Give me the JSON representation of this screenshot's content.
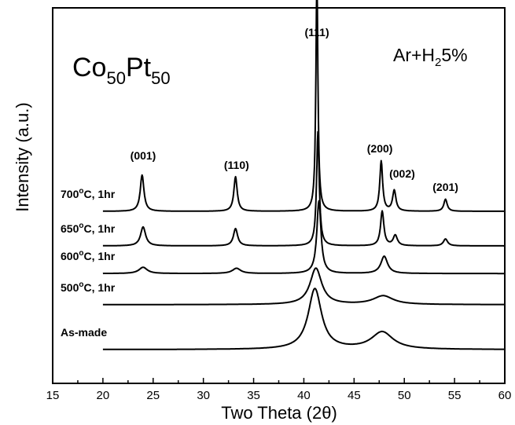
{
  "chart_data": {
    "type": "line",
    "xlabel": "Two Theta (2θ)",
    "ylabel": "Intensity (a.u.)",
    "xlim": [
      15,
      60
    ],
    "xticks": [
      "15",
      "20",
      "25",
      "30",
      "35",
      "40",
      "45",
      "50",
      "55",
      "60"
    ],
    "yticks": "none",
    "grid": false,
    "composition": {
      "base1": "Co",
      "sub1": "50",
      "base2": "Pt",
      "sub2": "50"
    },
    "atmosphere": {
      "base1": "Ar+H",
      "sub1": "2",
      "base2": "5%"
    },
    "peak_labels": [
      {
        "text": "(001)",
        "x": 24.0
      },
      {
        "text": "(110)",
        "x": 33.3
      },
      {
        "text": "(111)",
        "x": 41.3
      },
      {
        "text": "(200)",
        "x": 47.8
      },
      {
        "text": "(002)",
        "x": 49.0
      },
      {
        "text": "(201)",
        "x": 54.1
      }
    ],
    "series": [
      {
        "name": "As-made",
        "name_main": "As-made",
        "name_sup": "",
        "name_rest": "",
        "baseline": 0.0,
        "peaks": [
          {
            "x": 41.1,
            "h": 1.75,
            "w": 0.8
          },
          {
            "x": 47.8,
            "h": 0.5,
            "w": 1.3
          }
        ]
      },
      {
        "name": "500°C, 1hr",
        "name_main": "500",
        "name_sup": "o",
        "name_rest": "C, 1hr",
        "baseline": 1.3,
        "peaks": [
          {
            "x": 41.2,
            "h": 1.05,
            "w": 0.7
          },
          {
            "x": 47.9,
            "h": 0.25,
            "w": 1.2
          }
        ]
      },
      {
        "name": "600°C, 1hr",
        "name_main": "600",
        "name_sup": "o",
        "name_rest": "C, 1hr",
        "baseline": 2.2,
        "peaks": [
          {
            "x": 24.0,
            "h": 0.18,
            "w": 0.5
          },
          {
            "x": 33.3,
            "h": 0.15,
            "w": 0.5
          },
          {
            "x": 41.5,
            "h": 2.1,
            "w": 0.25
          },
          {
            "x": 48.0,
            "h": 0.5,
            "w": 0.4
          }
        ]
      },
      {
        "name": "650°C, 1hr",
        "name_main": "650",
        "name_sup": "o",
        "name_rest": "C, 1hr",
        "baseline": 3.0,
        "peaks": [
          {
            "x": 24.0,
            "h": 0.55,
            "w": 0.3
          },
          {
            "x": 33.2,
            "h": 0.5,
            "w": 0.25
          },
          {
            "x": 41.4,
            "h": 3.3,
            "w": 0.16
          },
          {
            "x": 47.8,
            "h": 1.0,
            "w": 0.2
          },
          {
            "x": 49.1,
            "h": 0.3,
            "w": 0.25
          },
          {
            "x": 54.1,
            "h": 0.2,
            "w": 0.25
          }
        ]
      },
      {
        "name": "700°C, 1hr",
        "name_main": "700",
        "name_sup": "o",
        "name_rest": "C, 1hr",
        "baseline": 4.0,
        "peaks": [
          {
            "x": 23.9,
            "h": 1.05,
            "w": 0.22
          },
          {
            "x": 33.2,
            "h": 1.0,
            "w": 0.2
          },
          {
            "x": 41.3,
            "h": 6.8,
            "w": 0.12
          },
          {
            "x": 47.7,
            "h": 1.45,
            "w": 0.17
          },
          {
            "x": 49.0,
            "h": 0.6,
            "w": 0.2
          },
          {
            "x": 54.1,
            "h": 0.35,
            "w": 0.2
          }
        ]
      }
    ]
  }
}
